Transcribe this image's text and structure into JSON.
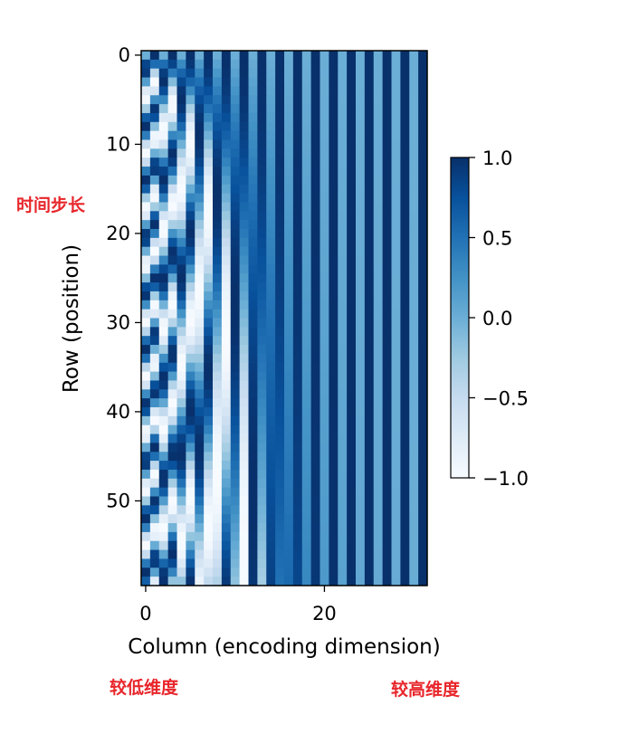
{
  "chart_data": {
    "type": "heatmap",
    "title": "",
    "xlabel": "Column (encoding dimension)",
    "ylabel": "Row (position)",
    "n_rows": 60,
    "n_cols": 32,
    "formula": "positional encoding: even col j -> sin(pos / 10000^(j/32)), odd col j -> cos(pos / 10000^((j-1)/32))",
    "x_ticks": [
      0,
      20
    ],
    "y_ticks": [
      0,
      10,
      20,
      30,
      40,
      50
    ],
    "colormap": "Blues",
    "vmin": -1.0,
    "vmax": 1.0,
    "colorbar_ticks": [
      "1.0",
      "0.5",
      "0.0",
      "−0.5",
      "−1.0"
    ],
    "colorbar_tick_values": [
      1.0,
      0.5,
      0.0,
      -0.5,
      -1.0
    ]
  },
  "annotations": {
    "row_note": "时间步长",
    "low_dim_note": "较低维度",
    "high_dim_note": "较高维度"
  },
  "colors": {
    "annotation": "#e8262b",
    "cmap_low": "#f7fbff",
    "cmap_high": "#08306b"
  }
}
